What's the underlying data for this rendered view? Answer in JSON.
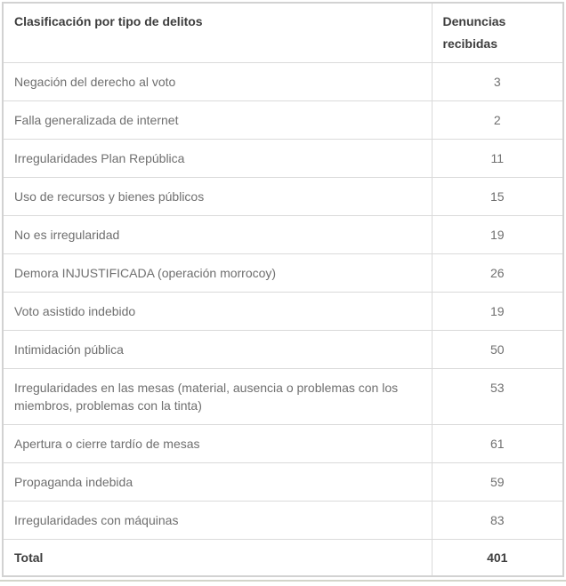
{
  "chart_data": {
    "type": "table",
    "title": "Clasificación por tipo de delitos vs Denuncias recibidas",
    "columns": [
      "Clasificación por tipo de delitos",
      "Denuncias recibidas"
    ],
    "categories": [
      "Negación del derecho al voto",
      "Falla generalizada de internet",
      "Irregularidades Plan República",
      "Uso de recursos y bienes públicos",
      "No es irregularidad",
      "Demora INJUSTIFICADA (operación morrocoy)",
      "Voto asistido indebido",
      "Intimidación pública",
      "Irregularidades en las mesas (material, ausencia o problemas con los miembros, problemas con la tinta)",
      "Apertura o cierre tardío de mesas",
      "Propaganda indebida",
      "Irregularidades con máquinas"
    ],
    "values": [
      3,
      2,
      11,
      15,
      19,
      26,
      19,
      50,
      53,
      61,
      59,
      83
    ],
    "total": 401
  },
  "table": {
    "header": {
      "type_label": "Clasificación por tipo de delitos",
      "count_label": "Denuncias recibidas"
    },
    "rows": [
      {
        "type": "Negación del derecho al voto",
        "count": "3"
      },
      {
        "type": "Falla generalizada de internet",
        "count": "2"
      },
      {
        "type": "Irregularidades Plan República",
        "count": "11"
      },
      {
        "type": "Uso de recursos y bienes públicos",
        "count": "15"
      },
      {
        "type": "No es irregularidad",
        "count": "19"
      },
      {
        "type": "Demora INJUSTIFICADA (operación morrocoy)",
        "count": "26"
      },
      {
        "type": "Voto asistido indebido",
        "count": "19"
      },
      {
        "type": "Intimidación pública",
        "count": "50"
      },
      {
        "type": "Irregularidades en las mesas (material, ausencia o problemas con los miembros, problemas con la tinta)",
        "count": "53"
      },
      {
        "type": "Apertura o cierre tardío de mesas",
        "count": "61"
      },
      {
        "type": "Propaganda indebida",
        "count": "59"
      },
      {
        "type": "Irregularidades con máquinas",
        "count": "83"
      }
    ],
    "total": {
      "label": "Total",
      "value": "401"
    }
  },
  "colors": {
    "outer_border": "#d2d2d2",
    "inner_border": "#dadada",
    "header_text": "#3d3d3d",
    "body_text": "#6f6f6f",
    "bottom_rule": "#d3d4ca"
  }
}
